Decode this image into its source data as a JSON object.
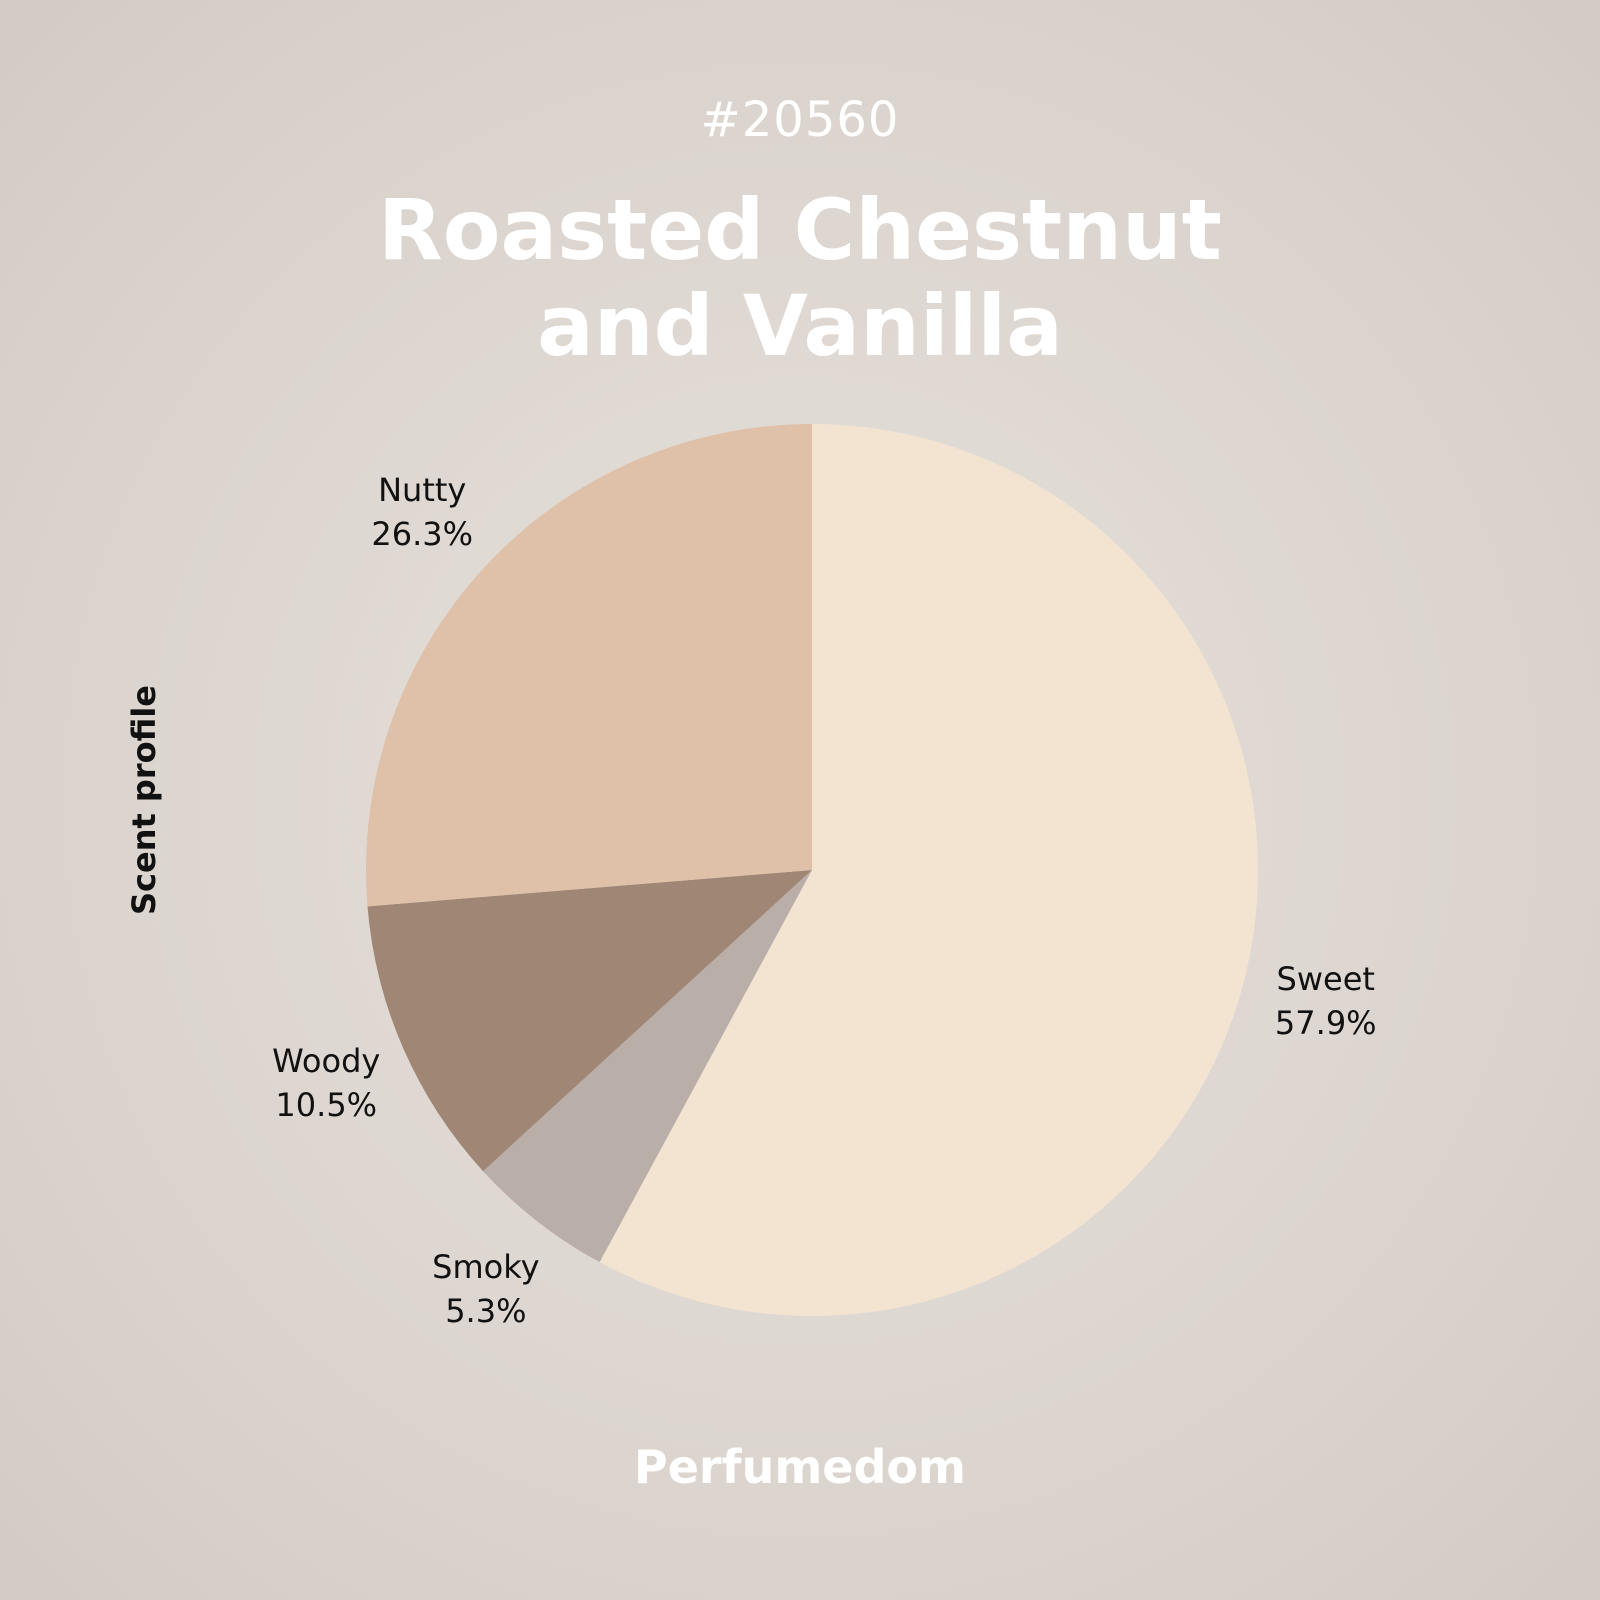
{
  "header": {
    "id": "#20560",
    "title_line1": "Roasted Chestnut",
    "title_line2": "and Vanilla"
  },
  "footer": {
    "brand": "Perfumedom"
  },
  "chart_data": {
    "type": "pie",
    "title": "Roasted Chestnut and Vanilla",
    "ylabel": "Scent profile",
    "start_angle_deg": 0,
    "direction": "clockwise",
    "slices": [
      {
        "label": "Sweet",
        "value": 57.9,
        "display": "57.9%",
        "color": "#f3e4d2"
      },
      {
        "label": "Smoky",
        "value": 5.3,
        "display": "5.3%",
        "color": "#baaea8"
      },
      {
        "label": "Woody",
        "value": 10.5,
        "display": "10.5%",
        "color": "#9f8675"
      },
      {
        "label": "Nutty",
        "value": 26.3,
        "display": "26.3%",
        "color": "#dfc0a8"
      }
    ]
  }
}
